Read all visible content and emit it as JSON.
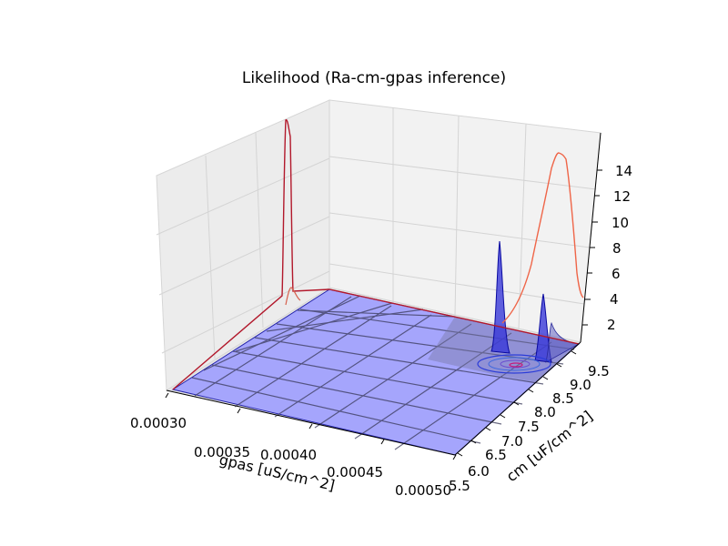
{
  "chart_data": {
    "type": "surface3d",
    "title": "Likelihood (Ra-cm-gpas inference)",
    "xlabel": "gpas [uS/cm^2]",
    "ylabel": "cm [uF/cm^2]",
    "zlabel": "",
    "x_ticks": [
      "0.00030",
      "0.00035",
      "0.00040",
      "0.00045",
      "0.00050"
    ],
    "y_ticks": [
      "5.5",
      "6.0",
      "6.5",
      "7.0",
      "7.5",
      "8.0",
      "8.5",
      "9.0",
      "9.5"
    ],
    "z_ticks": [
      "2",
      "4",
      "6",
      "8",
      "10",
      "12",
      "14"
    ],
    "xlim": [
      0.0003,
      0.0005
    ],
    "ylim": [
      5.5,
      9.5
    ],
    "zlim": [
      0.5,
      15.5
    ],
    "surface_peak": {
      "x": 0.000465,
      "y": 8.8,
      "z": 8.0,
      "secondary_z": 4.0
    },
    "contour_center": {
      "x": 0.000466,
      "y": 8.85
    },
    "marginal_gpas_peak": {
      "x": 0.000305,
      "z": 14.8,
      "base_z": 0.5
    },
    "marginal_cm_peak": {
      "y": 8.6,
      "z": 14.5,
      "base_z": 0.5
    },
    "colors": {
      "surface_fill": "#9999ff",
      "surface_peak_fill": "#3838d8",
      "grid_line": "#444466",
      "marginal_gpas": "#b2182b",
      "marginal_cm": "#ef6548",
      "contour_outer": "#2b3cd8",
      "contour_inner": "#c51b7d",
      "pane": "#f0f0f0"
    }
  }
}
